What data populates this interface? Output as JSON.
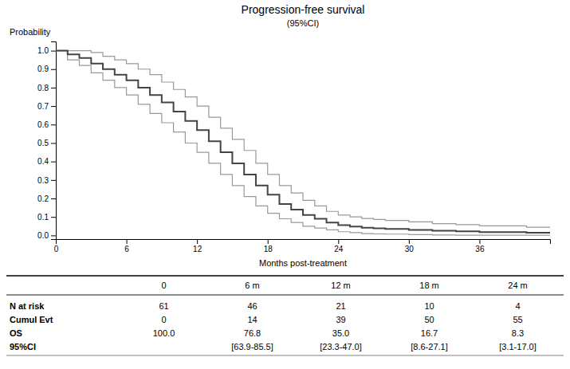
{
  "chart_data": {
    "type": "step",
    "title": "Progression-free survival",
    "subtitle": "(95%CI)",
    "xlabel": "Months post-treatment",
    "ylabel": "Probability",
    "x": [
      0,
      1,
      2,
      3,
      4,
      5,
      6,
      7,
      8,
      9,
      10,
      11,
      12,
      13,
      14,
      15,
      16,
      17,
      18,
      19,
      20,
      21,
      22,
      23,
      24,
      25,
      26,
      27,
      28,
      30,
      32,
      34,
      36,
      40,
      42
    ],
    "series": [
      {
        "color": "#999999",
        "values": [
          1.0,
          1.0,
          1.0,
          0.99,
          0.97,
          0.95,
          0.93,
          0.9,
          0.87,
          0.83,
          0.79,
          0.75,
          0.7,
          0.64,
          0.58,
          0.52,
          0.46,
          0.39,
          0.33,
          0.27,
          0.23,
          0.19,
          0.16,
          0.13,
          0.11,
          0.1,
          0.092,
          0.086,
          0.081,
          0.073,
          0.064,
          0.058,
          0.052,
          0.044,
          0.04
        ]
      },
      {
        "color": "#999999",
        "values": [
          1.0,
          0.95,
          0.92,
          0.88,
          0.84,
          0.8,
          0.76,
          0.71,
          0.66,
          0.61,
          0.56,
          0.5,
          0.45,
          0.39,
          0.33,
          0.27,
          0.21,
          0.16,
          0.12,
          0.09,
          0.07,
          0.05,
          0.04,
          0.03,
          0.02,
          0.015,
          0.01,
          0.008,
          0.007,
          0.004,
          0.002,
          0.001,
          0.001,
          0.001,
          0.001
        ]
      },
      {
        "color": "#444444",
        "values": [
          1.0,
          0.98,
          0.96,
          0.93,
          0.9,
          0.87,
          0.84,
          0.8,
          0.76,
          0.72,
          0.67,
          0.62,
          0.57,
          0.51,
          0.45,
          0.39,
          0.33,
          0.27,
          0.22,
          0.17,
          0.14,
          0.11,
          0.09,
          0.07,
          0.055,
          0.048,
          0.042,
          0.038,
          0.035,
          0.03,
          0.025,
          0.022,
          0.018,
          0.015,
          0.013
        ]
      }
    ],
    "xlim": [
      0,
      42
    ],
    "xticks": [
      0,
      6,
      12,
      18,
      24,
      30,
      36
    ],
    "ylim": [
      -0.02,
      1.05
    ],
    "yticks": [
      {
        "value": 0.0,
        "label": "0.0"
      },
      0.1,
      0.2,
      0.3,
      0.4,
      0.5,
      0.6,
      0.7,
      0.8,
      0.9,
      {
        "value": 1.0,
        "label": "1.0"
      }
    ],
    "grid": false,
    "table": {
      "columns": [
        "0",
        "6 m",
        "12 m",
        "18 m",
        "24 m"
      ],
      "rows": [
        {
          "label": "N at risk",
          "values": [
            "61",
            "46",
            "21",
            "10",
            "4"
          ]
        },
        {
          "label": "Cumul Evt",
          "values": [
            "0",
            "14",
            "39",
            "50",
            "55"
          ]
        },
        {
          "label": "OS",
          "values": [
            "100.0",
            "76.8",
            "35.0",
            "16.7",
            "8.3"
          ]
        },
        {
          "label": "95%CI",
          "values": [
            null,
            "[63.9-85.5]",
            "[23.3-47.0]",
            "[8.6-27.1]",
            "[3.1-17.0]"
          ]
        }
      ]
    }
  }
}
